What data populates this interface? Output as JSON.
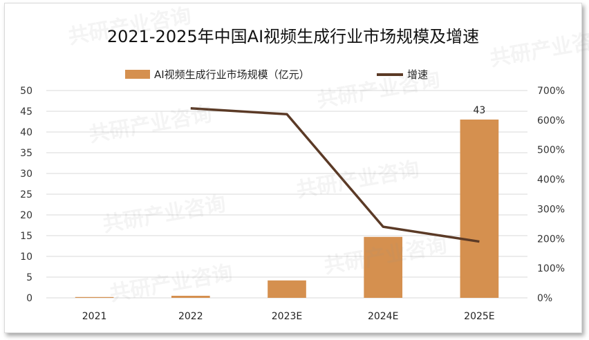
{
  "chart_data": {
    "type": "bar",
    "title": "2021-2025年中国AI视频生成行业市场规模及增速",
    "categories": [
      "2021",
      "2022",
      "2023E",
      "2024E",
      "2025E"
    ],
    "series": [
      {
        "name": "AI视频生成行业市场规模（亿元）",
        "type": "bar",
        "axis": "left",
        "values": [
          0.2,
          0.5,
          4.2,
          14.7,
          43
        ]
      },
      {
        "name": "增速",
        "type": "line",
        "axis": "right",
        "values": [
          null,
          640,
          620,
          240,
          190
        ]
      }
    ],
    "data_labels": [
      {
        "category": "2025E",
        "text": "43"
      }
    ],
    "y_left": {
      "lim": [
        0,
        50
      ],
      "ticks": [
        "0",
        "5",
        "10",
        "15",
        "20",
        "25",
        "30",
        "35",
        "40",
        "45",
        "50"
      ]
    },
    "y_right": {
      "lim": [
        0,
        700
      ],
      "unit": "%",
      "ticks": [
        "0%",
        "100%",
        "200%",
        "300%",
        "400%",
        "500%",
        "600%",
        "700%"
      ]
    },
    "grid": true,
    "legend_position": "top",
    "colors": {
      "bar": "#D5904F",
      "line": "#5B3A26",
      "grid": "#D9D9D9"
    }
  },
  "watermark": {
    "text": "共研产业咨询",
    "url": "www.gonyn.com"
  }
}
